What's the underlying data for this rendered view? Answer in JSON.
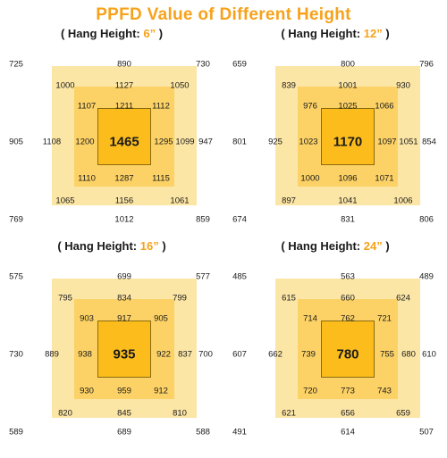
{
  "title": "PPFD Value of Different Height",
  "panels": [
    {
      "hang_prefix": "( Hang Height: ",
      "hang_value": "6”",
      "hang_suffix": " )",
      "grid": [
        [
          "725",
          "890",
          "730"
        ],
        [
          "1000",
          "1127",
          "1050"
        ],
        [
          "1107",
          "1211",
          "1112"
        ],
        [
          "905",
          "1108",
          "1200",
          "1465",
          "1295",
          "1099",
          "947"
        ],
        [
          "1110",
          "1287",
          "1115"
        ],
        [
          "1065",
          "1156",
          "1061"
        ],
        [
          "769",
          "1012",
          "859"
        ]
      ]
    },
    {
      "hang_prefix": "( Hang Height: ",
      "hang_value": "12”",
      "hang_suffix": " )",
      "grid": [
        [
          "659",
          "800",
          "796"
        ],
        [
          "839",
          "1001",
          "930"
        ],
        [
          "976",
          "1025",
          "1066"
        ],
        [
          "801",
          "925",
          "1023",
          "1170",
          "1097",
          "1051",
          "854"
        ],
        [
          "1000",
          "1096",
          "1071"
        ],
        [
          "897",
          "1041",
          "1006"
        ],
        [
          "674",
          "831",
          "806"
        ]
      ]
    },
    {
      "hang_prefix": "( Hang Height: ",
      "hang_value": "16”",
      "hang_suffix": " )",
      "grid": [
        [
          "575",
          "699",
          "577"
        ],
        [
          "795",
          "834",
          "799"
        ],
        [
          "903",
          "917",
          "905"
        ],
        [
          "730",
          "889",
          "938",
          "935",
          "922",
          "837",
          "700"
        ],
        [
          "930",
          "959",
          "912"
        ],
        [
          "820",
          "845",
          "810"
        ],
        [
          "589",
          "689",
          "588"
        ]
      ]
    },
    {
      "hang_prefix": "( Hang Height: ",
      "hang_value": "24”",
      "hang_suffix": " )",
      "grid": [
        [
          "485",
          "563",
          "489"
        ],
        [
          "615",
          "660",
          "624"
        ],
        [
          "714",
          "762",
          "721"
        ],
        [
          "607",
          "662",
          "739",
          "780",
          "755",
          "680",
          "610"
        ],
        [
          "720",
          "773",
          "743"
        ],
        [
          "621",
          "656",
          "659"
        ],
        [
          "491",
          "614",
          "507"
        ]
      ]
    }
  ],
  "chart_data": {
    "type": "heatmap",
    "title": "PPFD Value of Different Height",
    "series": [
      {
        "name": "( Hang Height: 6” )",
        "center": 1465
      },
      {
        "name": "( Hang Height: 12” )",
        "center": 1170
      },
      {
        "name": "( Hang Height: 16” )",
        "center": 935
      },
      {
        "name": "( Hang Height: 24” )",
        "center": 780
      }
    ]
  }
}
